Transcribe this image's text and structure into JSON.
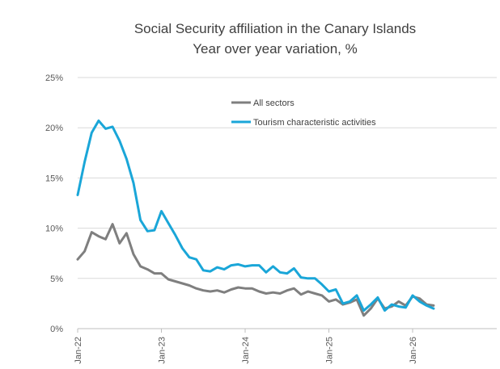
{
  "chart_data": {
    "type": "line",
    "title": "Social Security affiliation in the Canary Islands",
    "subtitle": "Year over year variation, %",
    "xlabel": "",
    "ylabel": "",
    "ylim": [
      0,
      25
    ],
    "y_ticks": [
      "0%",
      "5%",
      "10%",
      "15%",
      "20%",
      "25%"
    ],
    "x_tick_labels": [
      "Jan-22",
      "Jan-23",
      "Jan-24",
      "Jan-25",
      "Jan-26"
    ],
    "x_start": "Jan-22",
    "legend_position": "top-right",
    "grid": "horizontal",
    "series": [
      {
        "name": "All sectors",
        "color": "#7f7f7f",
        "values": [
          6.9,
          7.7,
          9.6,
          9.2,
          8.9,
          10.4,
          8.5,
          9.5,
          7.4,
          6.2,
          5.9,
          5.5,
          5.5,
          4.9,
          4.7,
          4.5,
          4.3,
          4.0,
          3.8,
          3.7,
          3.8,
          3.6,
          3.9,
          4.1,
          4.0,
          4.0,
          3.7,
          3.5,
          3.6,
          3.5,
          3.8,
          4.0,
          3.4,
          3.7,
          3.5,
          3.3,
          2.7,
          2.9,
          2.4,
          2.6,
          2.9,
          1.3,
          2.0,
          3.0,
          2.0,
          2.2,
          2.7,
          2.3,
          3.2,
          3.0,
          2.4,
          2.3
        ]
      },
      {
        "name": "Tourism characteristic activities",
        "color": "#1aa6d8",
        "values": [
          13.3,
          16.6,
          19.5,
          20.7,
          19.9,
          20.1,
          18.7,
          16.9,
          14.5,
          10.8,
          9.7,
          9.8,
          11.7,
          10.5,
          9.3,
          8.0,
          7.1,
          6.9,
          5.8,
          5.7,
          6.1,
          5.9,
          6.3,
          6.4,
          6.2,
          6.3,
          6.3,
          5.6,
          6.2,
          5.6,
          5.5,
          6.0,
          5.1,
          5.0,
          5.0,
          4.4,
          3.7,
          3.9,
          2.5,
          2.7,
          3.3,
          1.8,
          2.4,
          3.1,
          1.8,
          2.4,
          2.2,
          2.1,
          3.3,
          2.7,
          2.3,
          2.0
        ]
      }
    ]
  }
}
